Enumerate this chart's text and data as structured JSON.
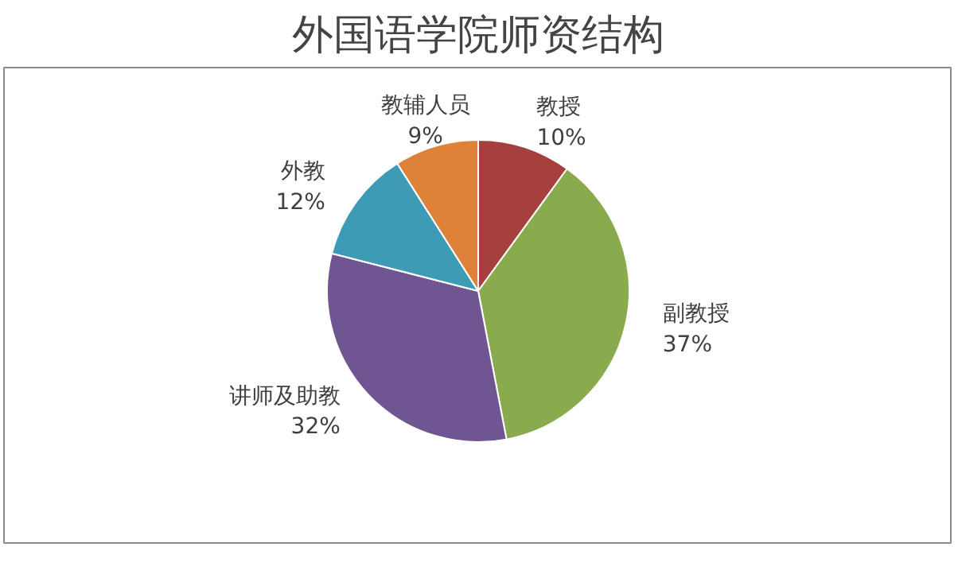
{
  "chart_data": {
    "type": "pie",
    "title": "外国语学院师资结构",
    "categories": [
      "教授",
      "副教授",
      "讲师及助教",
      "外教",
      "教辅人员"
    ],
    "values": [
      10,
      37,
      32,
      12,
      9
    ],
    "value_labels": [
      "10%",
      "37%",
      "32%",
      "12%",
      "9%"
    ],
    "colors": [
      "#a5403f",
      "#8aaa4e",
      "#6f5592",
      "#3d9bb5",
      "#de8139"
    ],
    "legend": false
  }
}
